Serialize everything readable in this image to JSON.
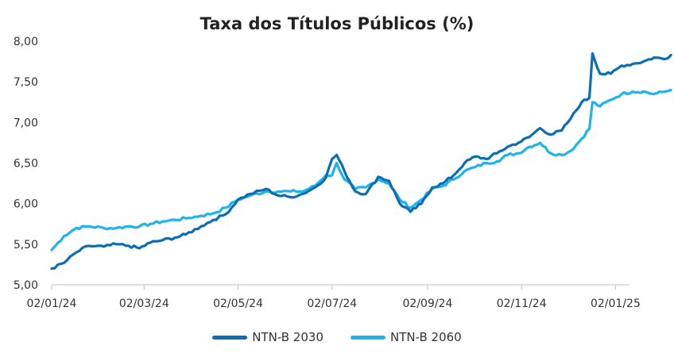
{
  "chart_data": {
    "type": "line",
    "title": "Taxa dos Títulos Públicos (%)",
    "xlabel": "",
    "ylabel": "",
    "ylim": [
      5.0,
      8.0
    ],
    "y_ticks": [
      "5,00",
      "5,50",
      "6,00",
      "6,50",
      "7,00",
      "7,50",
      "8,00"
    ],
    "x_ticks": [
      "02/01/24",
      "02/03/24",
      "02/05/24",
      "02/07/24",
      "02/09/24",
      "02/11/24",
      "02/01/25"
    ],
    "grid": false,
    "legend_position": "bottom",
    "series": [
      {
        "name": "NTN-B 2030",
        "color": "#0B6DB3",
        "end_label": "7,83",
        "points": [
          [
            "2024-01-02",
            5.2
          ],
          [
            "2024-01-10",
            5.27
          ],
          [
            "2024-01-18",
            5.4
          ],
          [
            "2024-01-26",
            5.48
          ],
          [
            "2024-02-05",
            5.47
          ],
          [
            "2024-02-13",
            5.5
          ],
          [
            "2024-02-21",
            5.48
          ],
          [
            "2024-02-28",
            5.45
          ],
          [
            "2024-03-06",
            5.52
          ],
          [
            "2024-03-14",
            5.55
          ],
          [
            "2024-03-22",
            5.58
          ],
          [
            "2024-03-29",
            5.62
          ],
          [
            "2024-04-08",
            5.72
          ],
          [
            "2024-04-16",
            5.8
          ],
          [
            "2024-04-24",
            5.87
          ],
          [
            "2024-05-02",
            6.05
          ],
          [
            "2024-05-10",
            6.12
          ],
          [
            "2024-05-20",
            6.18
          ],
          [
            "2024-05-28",
            6.1
          ],
          [
            "2024-06-05",
            6.08
          ],
          [
            "2024-06-13",
            6.12
          ],
          [
            "2024-06-21",
            6.2
          ],
          [
            "2024-06-28",
            6.32
          ],
          [
            "2024-07-02",
            6.55
          ],
          [
            "2024-07-05",
            6.6
          ],
          [
            "2024-07-10",
            6.4
          ],
          [
            "2024-07-17",
            6.15
          ],
          [
            "2024-07-24",
            6.12
          ],
          [
            "2024-08-01",
            6.33
          ],
          [
            "2024-08-08",
            6.28
          ],
          [
            "2024-08-15",
            6.0
          ],
          [
            "2024-08-22",
            5.9
          ],
          [
            "2024-08-29",
            6.0
          ],
          [
            "2024-09-05",
            6.2
          ],
          [
            "2024-09-12",
            6.25
          ],
          [
            "2024-09-19",
            6.35
          ],
          [
            "2024-09-26",
            6.5
          ],
          [
            "2024-10-03",
            6.58
          ],
          [
            "2024-10-10",
            6.55
          ],
          [
            "2024-10-17",
            6.62
          ],
          [
            "2024-10-24",
            6.7
          ],
          [
            "2024-10-31",
            6.75
          ],
          [
            "2024-11-07",
            6.82
          ],
          [
            "2024-11-14",
            6.93
          ],
          [
            "2024-11-21",
            6.85
          ],
          [
            "2024-11-28",
            6.9
          ],
          [
            "2024-12-04",
            7.05
          ],
          [
            "2024-12-11",
            7.25
          ],
          [
            "2024-12-16",
            7.3
          ],
          [
            "2024-12-18",
            7.85
          ],
          [
            "2024-12-23",
            7.6
          ],
          [
            "2024-12-30",
            7.6
          ],
          [
            "2025-01-06",
            7.7
          ],
          [
            "2025-01-13",
            7.72
          ],
          [
            "2025-01-20",
            7.75
          ],
          [
            "2025-01-27",
            7.8
          ],
          [
            "2025-02-03",
            7.78
          ],
          [
            "2025-02-07",
            7.83
          ]
        ]
      },
      {
        "name": "NTN-B 2060",
        "color": "#1DB4EC",
        "end_label": "7,40",
        "points": [
          [
            "2024-01-02",
            5.43
          ],
          [
            "2024-01-10",
            5.6
          ],
          [
            "2024-01-18",
            5.7
          ],
          [
            "2024-01-26",
            5.72
          ],
          [
            "2024-02-05",
            5.7
          ],
          [
            "2024-02-13",
            5.7
          ],
          [
            "2024-02-21",
            5.72
          ],
          [
            "2024-02-28",
            5.72
          ],
          [
            "2024-03-06",
            5.75
          ],
          [
            "2024-03-14",
            5.78
          ],
          [
            "2024-03-22",
            5.8
          ],
          [
            "2024-03-29",
            5.82
          ],
          [
            "2024-04-08",
            5.85
          ],
          [
            "2024-04-16",
            5.88
          ],
          [
            "2024-04-24",
            5.95
          ],
          [
            "2024-05-02",
            6.05
          ],
          [
            "2024-05-10",
            6.1
          ],
          [
            "2024-05-20",
            6.15
          ],
          [
            "2024-05-28",
            6.15
          ],
          [
            "2024-06-05",
            6.15
          ],
          [
            "2024-06-13",
            6.15
          ],
          [
            "2024-06-21",
            6.22
          ],
          [
            "2024-06-28",
            6.35
          ],
          [
            "2024-07-02",
            6.35
          ],
          [
            "2024-07-05",
            6.5
          ],
          [
            "2024-07-10",
            6.3
          ],
          [
            "2024-07-17",
            6.18
          ],
          [
            "2024-07-24",
            6.2
          ],
          [
            "2024-08-01",
            6.3
          ],
          [
            "2024-08-08",
            6.25
          ],
          [
            "2024-08-15",
            6.05
          ],
          [
            "2024-08-22",
            5.95
          ],
          [
            "2024-08-29",
            6.05
          ],
          [
            "2024-09-05",
            6.18
          ],
          [
            "2024-09-12",
            6.22
          ],
          [
            "2024-09-19",
            6.3
          ],
          [
            "2024-09-26",
            6.4
          ],
          [
            "2024-10-03",
            6.45
          ],
          [
            "2024-10-10",
            6.5
          ],
          [
            "2024-10-17",
            6.52
          ],
          [
            "2024-10-24",
            6.6
          ],
          [
            "2024-10-31",
            6.62
          ],
          [
            "2024-11-07",
            6.7
          ],
          [
            "2024-11-14",
            6.75
          ],
          [
            "2024-11-21",
            6.62
          ],
          [
            "2024-11-28",
            6.6
          ],
          [
            "2024-12-04",
            6.65
          ],
          [
            "2024-12-11",
            6.8
          ],
          [
            "2024-12-16",
            6.92
          ],
          [
            "2024-12-18",
            7.25
          ],
          [
            "2024-12-23",
            7.2
          ],
          [
            "2024-12-30",
            7.28
          ],
          [
            "2025-01-06",
            7.35
          ],
          [
            "2025-01-13",
            7.38
          ],
          [
            "2025-01-20",
            7.38
          ],
          [
            "2025-01-27",
            7.35
          ],
          [
            "2025-02-03",
            7.38
          ],
          [
            "2025-02-07",
            7.4
          ]
        ]
      }
    ]
  }
}
